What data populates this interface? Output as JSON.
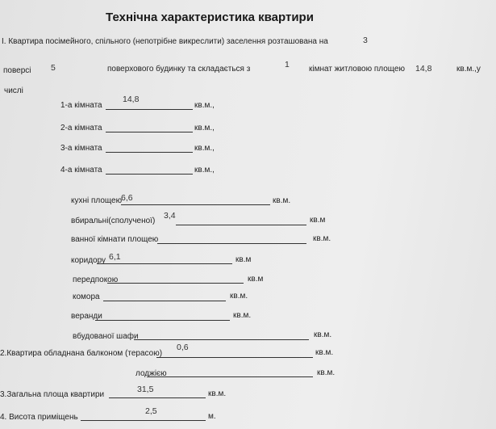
{
  "title": "Технічна характеристика квартири",
  "section1": {
    "line1": "І. Квартира посімейного, спільного (непотрібне викреслити) заселення розташована на",
    "floor": "3",
    "floor_label": "поверсі",
    "storeys": "5",
    "line2_mid": "поверхового будинку та складається з",
    "rooms_count": "1",
    "line2_rooms": "кімнат житловою площею",
    "living_area": "14,8",
    "line2_unit": "кв.м.,у",
    "line3": "числі"
  },
  "rooms": [
    {
      "label": "1-а кімната",
      "value": "14,8",
      "unit": "кв.м.,"
    },
    {
      "label": "2-а кімната",
      "value": "",
      "unit": "кв.м.,"
    },
    {
      "label": "3-а кімната",
      "value": "",
      "unit": "кв.м.,"
    },
    {
      "label": "4-а кімната",
      "value": "",
      "unit": "кв.м.,"
    }
  ],
  "areas": [
    {
      "label": "кухні площею",
      "value": "6,6",
      "unit": "кв.м."
    },
    {
      "label": "вбиральні(сполученої)",
      "value": "3,4",
      "unit": "кв.м"
    },
    {
      "label": "ванної кімнати площею",
      "value": "",
      "unit": "кв.м."
    },
    {
      "label": "коридору",
      "value": "6,1",
      "unit": "кв.м"
    },
    {
      "label": "передпокою",
      "value": "",
      "unit": "кв.м"
    },
    {
      "label": "комора",
      "value": "",
      "unit": "кв.м."
    },
    {
      "label": "веранди",
      "value": "",
      "unit": "кв.м."
    },
    {
      "label": "вбудованої шафи",
      "value": "",
      "unit": "кв.м."
    }
  ],
  "section2": {
    "balcony_label": "2.Квартира обладнана балконом (терасою)",
    "balcony_value": "0,6",
    "balcony_unit": "кв.м.",
    "loggia_label": "лоджією",
    "loggia_value": "",
    "loggia_unit": "кв.м."
  },
  "section3": {
    "label": "3.Загальна площа квартири",
    "value": "31,5",
    "unit": "кв.м."
  },
  "section4": {
    "label": "4. Висота приміщень",
    "value": "2,5",
    "unit": "м."
  }
}
